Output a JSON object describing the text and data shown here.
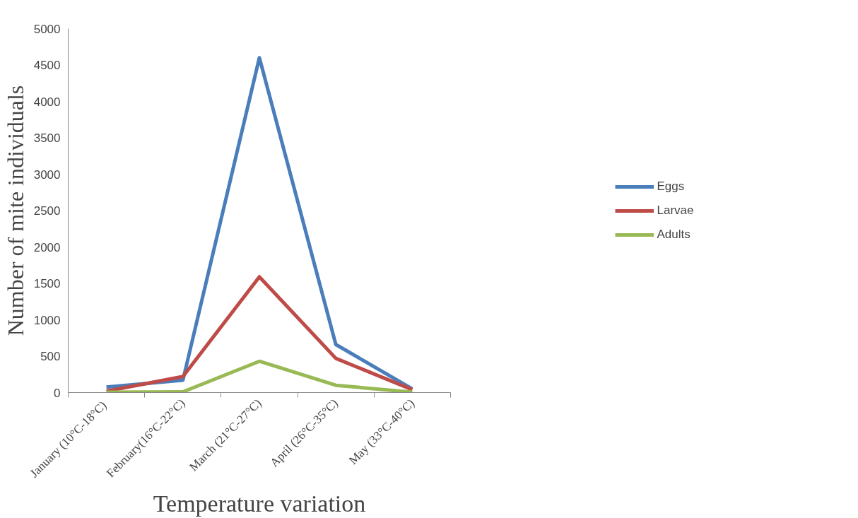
{
  "chart_data": {
    "type": "line",
    "xlabel": "Temperature variation",
    "ylabel": "Number of mite individuals",
    "categories": [
      "January  (10°C-18°C)",
      "February(16°C-22°C)",
      "March (21°C-27°C)",
      "April (26°C-35°C)",
      "May (33°C-40°C)"
    ],
    "series": [
      {
        "name": "Eggs",
        "color": "#4a7ebb",
        "values": [
          75,
          170,
          4600,
          660,
          50
        ]
      },
      {
        "name": "Larvae",
        "color": "#be4b48",
        "values": [
          20,
          220,
          1590,
          470,
          40
        ]
      },
      {
        "name": "Adults",
        "color": "#98b954",
        "values": [
          5,
          10,
          430,
          100,
          5
        ]
      }
    ],
    "ylim": [
      0,
      5000
    ],
    "yticks": [
      0,
      500,
      1000,
      1500,
      2000,
      2500,
      3000,
      3500,
      4000,
      4500,
      5000
    ],
    "grid": false,
    "legend": "right",
    "marker": "none",
    "line_style": "solid"
  }
}
